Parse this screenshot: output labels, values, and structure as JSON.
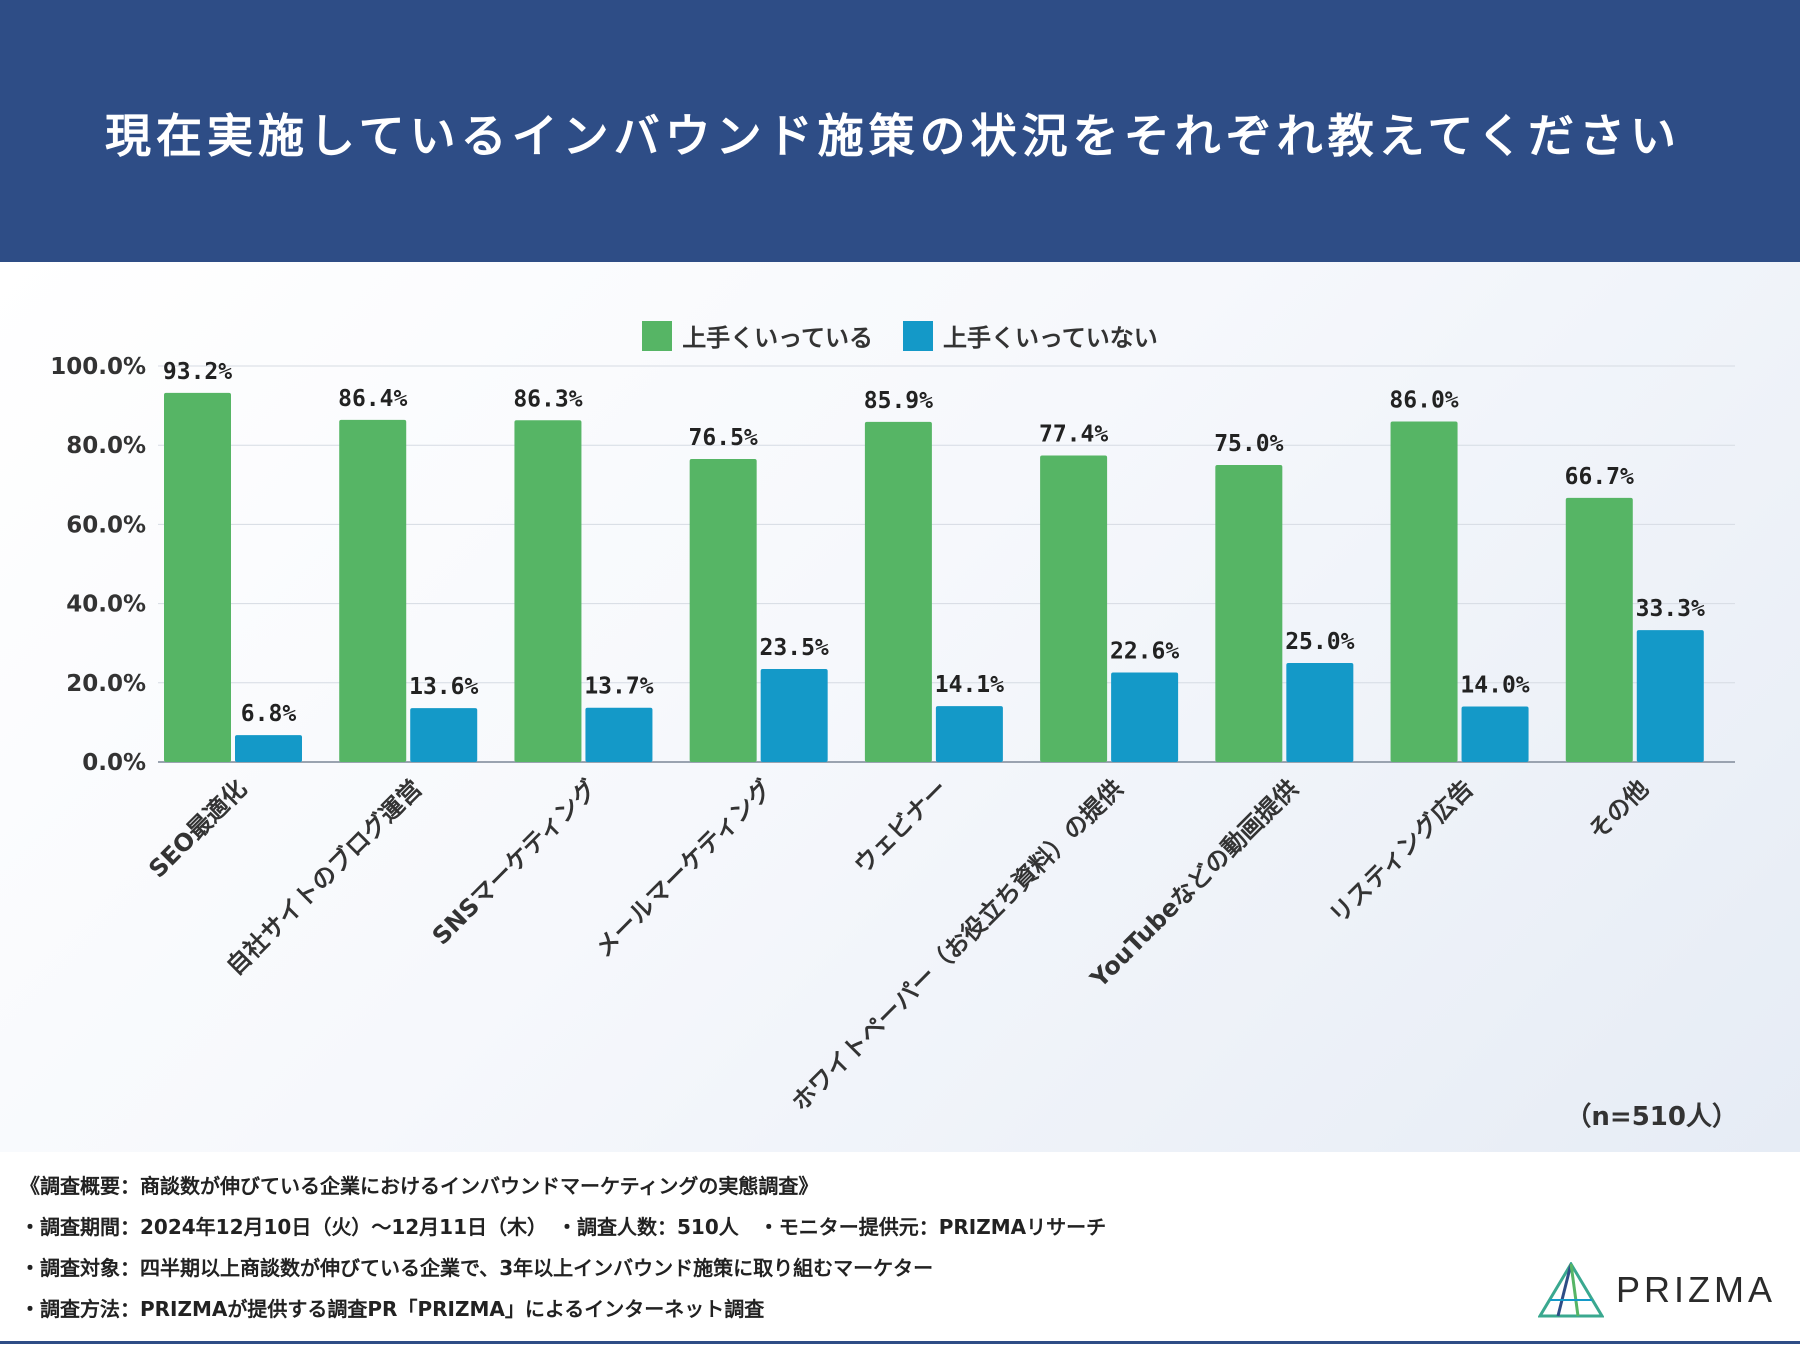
{
  "title": "現在実施しているインバウンド施策の状況をそれぞれ教えてください",
  "legend": [
    {
      "label": "上手くいっている",
      "color": "#56b565"
    },
    {
      "label": "上手くいっていない",
      "color": "#1499c8"
    }
  ],
  "sample_size": "（n=510人）",
  "chart_data": {
    "type": "bar",
    "title": "現在実施しているインバウンド施策の状況をそれぞれ教えてください",
    "categories": [
      "SEO最適化",
      "自社サイトのブログ運営",
      "SNSマーケティング",
      "メールマーケティング",
      "ウェビナー",
      "ホワイトペーパー（お役立ち資料）の提供",
      "YouTubeなどの動画提供",
      "リスティング広告",
      "その他"
    ],
    "series": [
      {
        "name": "上手くいっている",
        "color": "#56b565",
        "values": [
          93.2,
          86.4,
          86.3,
          76.5,
          85.9,
          77.4,
          75.0,
          86.0,
          66.7
        ],
        "labels": [
          "93.2%",
          "86.4%",
          "86.3%",
          "76.5%",
          "85.9%",
          "77.4%",
          "75.0%",
          "86.0%",
          "66.7%"
        ]
      },
      {
        "name": "上手くいっていない",
        "color": "#1499c8",
        "values": [
          6.8,
          13.6,
          13.7,
          23.5,
          14.1,
          22.6,
          25.0,
          14.0,
          33.3
        ],
        "labels": [
          "6.8%",
          "13.6%",
          "13.7%",
          "23.5%",
          "14.1%",
          "22.6%",
          "25.0%",
          "14.0%",
          "33.3%"
        ]
      }
    ],
    "yticks": [
      "0.0%",
      "20.0%",
      "40.0%",
      "60.0%",
      "80.0%",
      "100.0%"
    ],
    "ylim": [
      0,
      100
    ],
    "grid": true,
    "legend_position": "top-center"
  },
  "footer": {
    "summary": "《調査概要：商談数が伸びている企業におけるインバウンドマーケティングの実態調査》",
    "period": "・調査期間：2024年12月10日（火）〜12月11日（木）　・調査人数：510人　・モニター提供元：PRIZMAリサーチ",
    "target": "・調査対象：四半期以上商談数が伸びている企業で、3年以上インバウンド施策に取り組むマーケター",
    "method": "・調査方法：PRIZMAが提供する調査PR「PRIZMA」によるインターネット調査"
  },
  "logo_text": "PRIZMA"
}
